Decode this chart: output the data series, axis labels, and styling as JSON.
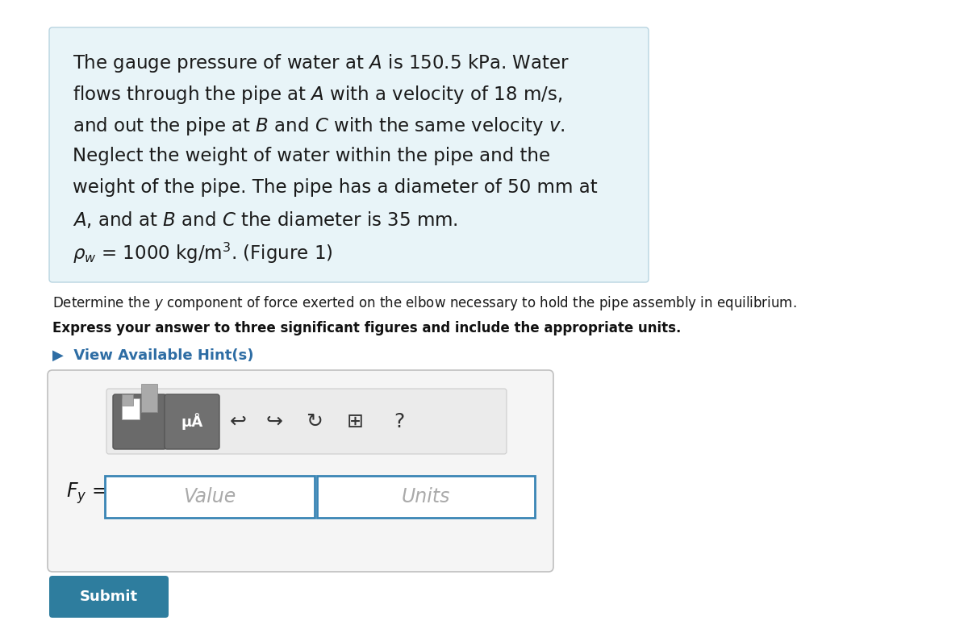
{
  "bg_color": "#ffffff",
  "box_bg_color": "#e8f4f8",
  "box_border_color": "#b8d4e0",
  "title_lines": [
    "The gauge pressure of water at $\\mathit{A}$ is 150.5 kPa. Water",
    "flows through the pipe at $\\mathit{A}$ with a velocity of 18 m/s,",
    "and out the pipe at $\\mathit{B}$ and $\\mathit{C}$ with the same velocity $v$.",
    "Neglect the weight of water within the pipe and the",
    "weight of the pipe. The pipe has a diameter of 50 mm at",
    "$\\mathit{A}$, and at $\\mathit{B}$ and $\\mathit{C}$ the diameter is 35 mm.",
    "$\\rho_w$ = 1000 kg/m$^3$. (Figure 1)"
  ],
  "question_line": "Determine the $y$ component of force exerted on the elbow necessary to hold the pipe assembly in equilibrium.",
  "bold_line": "Express your answer to three significant figures and include the appropriate units.",
  "hint_text": "▶  View Available Hint(s)",
  "hint_color": "#2e6da4",
  "label_text": "$F_y$ =",
  "value_placeholder": "Value",
  "units_placeholder": "Units",
  "submit_text": "Submit",
  "submit_bg": "#2e7d9e",
  "submit_color": "#ffffff",
  "input_box_color": "#ffffff",
  "input_border_color": "#3a85b5",
  "panel_bg": "#f5f5f5",
  "panel_border": "#c0c0c0",
  "toolbar_bg": "#ebebeb",
  "toolbar_border": "#cccccc",
  "icon1_bg": "#6a6a6a",
  "icon2_bg": "#707070"
}
